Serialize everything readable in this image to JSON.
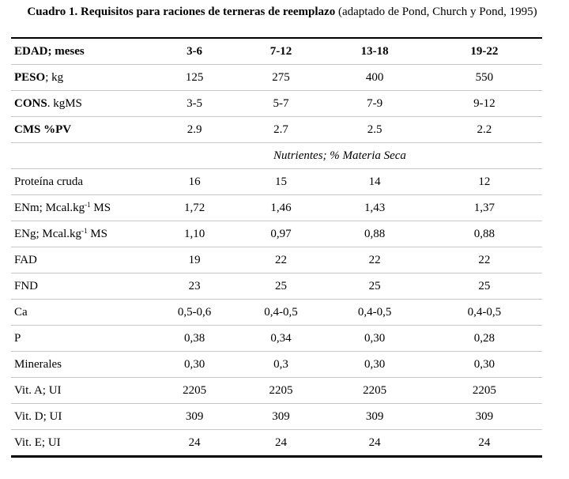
{
  "caption": {
    "title_bold": "Cuadro 1. Requisitos para raciones de terneras de reemplazo",
    "title_normal": " (adaptado de  Pond, Church y Pond, 1995)"
  },
  "header": {
    "label": "EDAD; meses",
    "cols": [
      "3-6",
      "7-12",
      "13-18",
      "19-22"
    ]
  },
  "rows_bold_label": [
    {
      "label_bold": "PESO",
      "label_rest": "; kg",
      "values": [
        "125",
        "275",
        "400",
        "550"
      ]
    },
    {
      "label_bold": "CONS",
      "label_rest": ".  kgMS",
      "values": [
        "3-5",
        "5-7",
        "7-9",
        "9-12"
      ]
    },
    {
      "label_bold": "CMS %PV",
      "label_rest": "",
      "values": [
        "2.9",
        "2.7",
        "2.5",
        "2.2"
      ]
    }
  ],
  "subheader": "Nutrientes; % Materia Seca",
  "nutrients": [
    {
      "label": "Proteína cruda",
      "values": [
        "16",
        "15",
        "14",
        "12"
      ]
    },
    {
      "label": "ENm; Mcal.kg",
      "sup": "-1",
      "label_after": " MS",
      "values": [
        "1,72",
        "1,46",
        "1,43",
        "1,37"
      ]
    },
    {
      "label": "ENg; Mcal.kg",
      "sup": "-1",
      "label_after": " MS",
      "values": [
        "1,10",
        "0,97",
        "0,88",
        "0,88"
      ]
    },
    {
      "label": "FAD",
      "values": [
        "19",
        "22",
        "22",
        "22"
      ]
    },
    {
      "label": "FND",
      "values": [
        "23",
        "25",
        "25",
        "25"
      ]
    },
    {
      "label": "Ca",
      "values": [
        "0,5-0,6",
        "0,4-0,5",
        "0,4-0,5",
        "0,4-0,5"
      ]
    },
    {
      "label": "P",
      "values": [
        "0,38",
        "0,34",
        "0,30",
        "0,28"
      ]
    },
    {
      "label": "Minerales",
      "values": [
        "0,30",
        "0,3",
        "0,30",
        "0,30"
      ]
    },
    {
      "label": "Vit. A; UI",
      "values": [
        "2205",
        "2205",
        "2205",
        "2205"
      ]
    },
    {
      "label": "Vit. D; UI",
      "values": [
        "309",
        "309",
        "309",
        "309"
      ]
    },
    {
      "label": "Vit. E; UI",
      "values": [
        "24",
        "24",
        "24",
        "24"
      ]
    }
  ]
}
